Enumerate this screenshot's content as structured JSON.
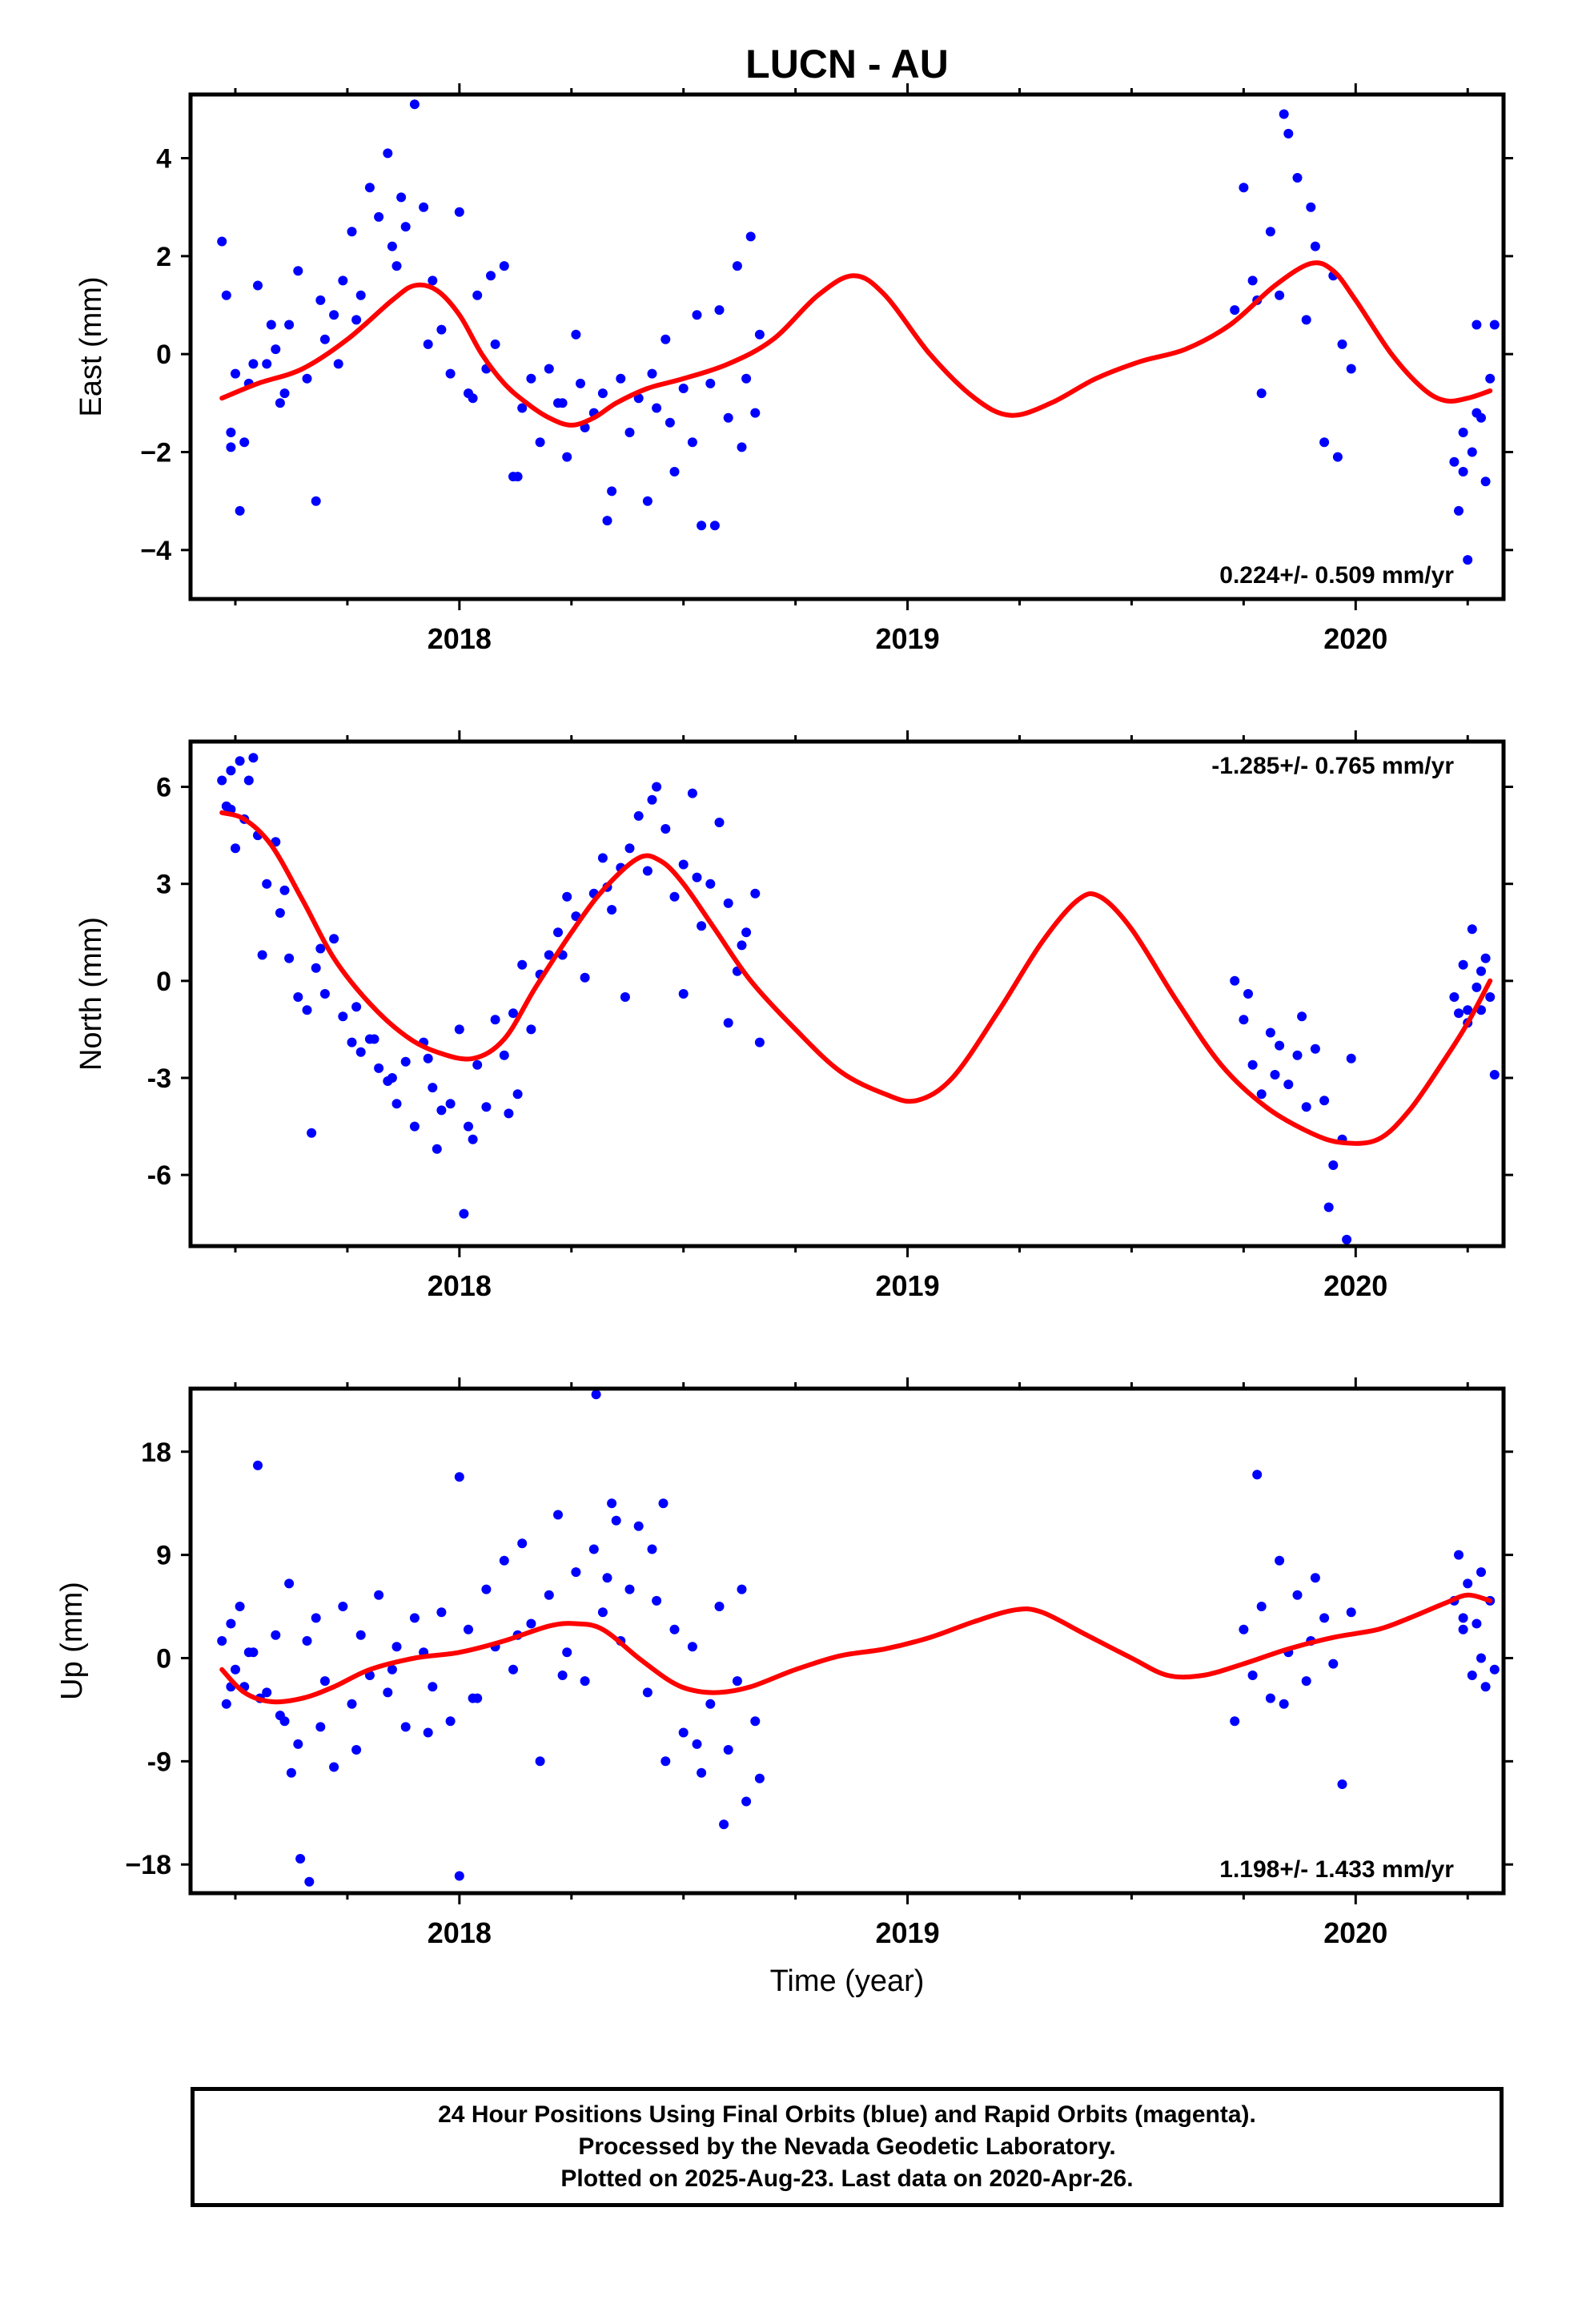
{
  "title": "LUCN - AU",
  "xlabel": "Time (year)",
  "footer": {
    "line1": "24 Hour Positions Using Final Orbits (blue) and Rapid Orbits (magenta).",
    "line2": "Processed by the Nevada Geodetic Laboratory.",
    "line3": "Plotted on 2025-Aug-23. Last data on 2020-Apr-26."
  },
  "colors": {
    "points": "#0000ff",
    "fit": "#ff0000",
    "frame": "#000000"
  },
  "chart_data": [
    {
      "type": "scatter",
      "ylabel": "East (mm)",
      "rate_text": "0.224+/- 0.509 mm/yr",
      "rate_position": "bottom-right",
      "xlim": [
        2017.4,
        2020.33
      ],
      "ylim": [
        -5.0,
        5.3
      ],
      "xticks": [
        2018,
        2019,
        2020
      ],
      "yticks": [
        4,
        2,
        0,
        -2,
        -4
      ],
      "ytick_labels": [
        "4",
        "2",
        "0",
        "−2",
        "−4"
      ],
      "fit": {
        "x": [
          2017.47,
          2017.55,
          2017.65,
          2017.75,
          2017.85,
          2017.9,
          2017.95,
          2018.0,
          2018.05,
          2018.1,
          2018.15,
          2018.2,
          2018.25,
          2018.3,
          2018.35,
          2018.42,
          2018.5,
          2018.6,
          2018.7,
          2018.8,
          2018.88,
          2018.95,
          2019.05,
          2019.15,
          2019.23,
          2019.32,
          2019.42,
          2019.52,
          2019.62,
          2019.72,
          2019.82,
          2019.9,
          2019.95,
          2020.0,
          2020.08,
          2020.15,
          2020.2,
          2020.25,
          2020.3
        ],
        "y": [
          -0.9,
          -0.6,
          -0.3,
          0.3,
          1.1,
          1.4,
          1.3,
          0.8,
          0.0,
          -0.6,
          -1.0,
          -1.3,
          -1.45,
          -1.3,
          -1.0,
          -0.7,
          -0.5,
          -0.2,
          0.3,
          1.2,
          1.6,
          1.2,
          0.0,
          -0.9,
          -1.25,
          -1.0,
          -0.5,
          -0.15,
          0.1,
          0.6,
          1.4,
          1.85,
          1.7,
          1.1,
          0.0,
          -0.7,
          -0.95,
          -0.9,
          -0.75
        ]
      },
      "points": {
        "x": [
          2017.47,
          2017.48,
          2017.49,
          2017.5,
          2017.51,
          2017.52,
          2017.53,
          2017.55,
          2017.57,
          2017.59,
          2017.6,
          2017.62,
          2017.64,
          2017.66,
          2017.68,
          2017.7,
          2017.72,
          2017.74,
          2017.76,
          2017.78,
          2017.8,
          2017.82,
          2017.84,
          2017.86,
          2017.88,
          2017.9,
          2017.92,
          2017.94,
          2017.96,
          2017.98,
          2018.0,
          2018.02,
          2018.04,
          2018.06,
          2018.08,
          2018.1,
          2018.12,
          2018.14,
          2018.16,
          2018.18,
          2018.2,
          2018.22,
          2018.24,
          2018.26,
          2018.28,
          2018.3,
          2018.32,
          2018.34,
          2018.36,
          2018.38,
          2018.4,
          2018.42,
          2018.44,
          2018.46,
          2018.48,
          2018.5,
          2018.52,
          2018.54,
          2018.56,
          2018.58,
          2018.6,
          2018.62,
          2018.64,
          2018.66,
          2018.67,
          2017.49,
          2017.54,
          2017.61,
          2017.69,
          2017.77,
          2017.85,
          2017.93,
          2018.03,
          2018.13,
          2018.23,
          2018.33,
          2018.43,
          2018.53,
          2018.63,
          2017.58,
          2017.73,
          2017.87,
          2018.07,
          2018.27,
          2018.47,
          2018.57,
          2018.65,
          2019.73,
          2019.75,
          2019.77,
          2019.79,
          2019.81,
          2019.83,
          2019.85,
          2019.87,
          2019.89,
          2019.91,
          2019.93,
          2019.95,
          2019.97,
          2019.99,
          2019.78,
          2019.84,
          2019.9,
          2019.96,
          2020.22,
          2020.23,
          2020.24,
          2020.25,
          2020.26,
          2020.27,
          2020.28,
          2020.29,
          2020.3,
          2020.31,
          2020.24,
          2020.27
        ],
        "y": [
          2.3,
          1.2,
          -1.6,
          -0.4,
          -3.2,
          -1.8,
          -0.6,
          1.4,
          -0.2,
          0.1,
          -1.0,
          0.6,
          1.7,
          -0.5,
          -3.0,
          0.3,
          0.8,
          1.5,
          2.5,
          1.2,
          3.4,
          2.8,
          4.1,
          1.8,
          2.6,
          5.1,
          3.0,
          1.5,
          0.5,
          -0.4,
          2.9,
          -0.8,
          1.2,
          -0.3,
          0.2,
          1.8,
          -2.5,
          -1.1,
          -0.5,
          -1.8,
          -0.3,
          -1.0,
          -2.1,
          0.4,
          -1.5,
          -1.2,
          -0.8,
          -2.8,
          -0.5,
          -1.6,
          -0.9,
          -3.0,
          -1.1,
          0.3,
          -2.4,
          -0.7,
          -1.8,
          -3.5,
          -0.6,
          0.9,
          -1.3,
          1.8,
          -0.5,
          -1.2,
          0.4,
          -1.9,
          -0.2,
          -0.8,
          1.1,
          0.7,
          2.2,
          0.2,
          -0.9,
          -2.5,
          -1.0,
          -3.4,
          -0.4,
          0.8,
          -1.9,
          0.6,
          -0.2,
          3.2,
          1.6,
          -0.6,
          -1.4,
          -3.5,
          2.4,
          0.9,
          3.4,
          1.5,
          -0.8,
          2.5,
          1.2,
          4.5,
          3.6,
          0.7,
          2.2,
          -1.8,
          1.6,
          0.2,
          -0.3,
          1.1,
          4.9,
          3.0,
          -2.1,
          -2.2,
          -3.2,
          -1.6,
          -4.2,
          -2.0,
          0.6,
          -1.3,
          -2.6,
          -0.5,
          0.6,
          -2.4,
          -1.2
        ]
      }
    },
    {
      "type": "scatter",
      "ylabel": "North (mm)",
      "rate_text": "-1.285+/- 0.765 mm/yr",
      "rate_position": "top-right",
      "xlim": [
        2017.4,
        2020.33
      ],
      "ylim": [
        -8.2,
        7.4
      ],
      "xticks": [
        2018,
        2019,
        2020
      ],
      "yticks": [
        6,
        3,
        0,
        -3,
        -6
      ],
      "ytick_labels": [
        "6",
        "3",
        "0",
        "-3",
        "-6"
      ],
      "fit": {
        "x": [
          2017.47,
          2017.52,
          2017.58,
          2017.65,
          2017.72,
          2017.8,
          2017.88,
          2017.95,
          2018.03,
          2018.1,
          2018.17,
          2018.25,
          2018.32,
          2018.4,
          2018.45,
          2018.5,
          2018.57,
          2018.65,
          2018.75,
          2018.85,
          2018.95,
          2019.02,
          2019.1,
          2019.2,
          2019.3,
          2019.38,
          2019.43,
          2019.5,
          2019.6,
          2019.7,
          2019.8,
          2019.9,
          2019.97,
          2020.05,
          2020.12,
          2020.2,
          2020.25,
          2020.3
        ],
        "y": [
          5.2,
          5.0,
          4.2,
          2.5,
          0.7,
          -0.7,
          -1.7,
          -2.2,
          -2.4,
          -1.8,
          -0.2,
          1.5,
          2.8,
          3.8,
          3.7,
          3.0,
          1.6,
          0.0,
          -1.5,
          -2.8,
          -3.5,
          -3.7,
          -3.0,
          -1.0,
          1.2,
          2.5,
          2.6,
          1.6,
          -0.6,
          -2.6,
          -3.9,
          -4.7,
          -5.0,
          -4.9,
          -4.0,
          -2.4,
          -1.3,
          0.0
        ]
      },
      "points": {
        "x": [
          2017.47,
          2017.48,
          2017.49,
          2017.5,
          2017.51,
          2017.52,
          2017.53,
          2017.55,
          2017.57,
          2017.59,
          2017.6,
          2017.62,
          2017.64,
          2017.66,
          2017.68,
          2017.7,
          2017.72,
          2017.74,
          2017.76,
          2017.78,
          2017.8,
          2017.82,
          2017.84,
          2017.86,
          2017.88,
          2017.9,
          2017.92,
          2017.94,
          2017.96,
          2017.98,
          2018.0,
          2018.02,
          2018.04,
          2018.06,
          2018.08,
          2018.1,
          2018.12,
          2018.14,
          2018.16,
          2018.18,
          2018.2,
          2018.22,
          2018.24,
          2018.26,
          2018.28,
          2018.3,
          2018.32,
          2018.34,
          2018.36,
          2018.38,
          2018.4,
          2018.42,
          2018.44,
          2018.46,
          2018.48,
          2018.5,
          2018.52,
          2018.54,
          2018.56,
          2018.58,
          2018.6,
          2018.62,
          2018.64,
          2018.66,
          2018.67,
          2017.49,
          2017.54,
          2017.61,
          2017.69,
          2017.77,
          2017.85,
          2017.93,
          2018.03,
          2018.13,
          2018.23,
          2018.33,
          2018.43,
          2018.53,
          2018.63,
          2017.56,
          2017.67,
          2017.81,
          2017.95,
          2018.01,
          2018.11,
          2018.37,
          2018.5,
          2018.6,
          2019.73,
          2019.75,
          2019.77,
          2019.79,
          2019.81,
          2019.83,
          2019.85,
          2019.87,
          2019.89,
          2019.91,
          2019.93,
          2019.95,
          2019.97,
          2019.99,
          2019.76,
          2019.82,
          2019.88,
          2019.94,
          2019.98,
          2020.22,
          2020.23,
          2020.24,
          2020.25,
          2020.26,
          2020.27,
          2020.28,
          2020.29,
          2020.3,
          2020.31,
          2020.25,
          2020.28
        ],
        "y": [
          6.2,
          5.4,
          6.5,
          4.1,
          6.8,
          5.0,
          6.2,
          4.5,
          3.0,
          4.3,
          2.1,
          0.7,
          -0.5,
          -0.9,
          0.4,
          -0.4,
          1.3,
          -1.1,
          -1.9,
          -2.2,
          -1.8,
          -2.7,
          -3.1,
          -3.8,
          -2.5,
          -4.5,
          -1.9,
          -3.3,
          -4.0,
          -3.8,
          -1.5,
          -4.5,
          -2.6,
          -3.9,
          -1.2,
          -2.3,
          -1.0,
          0.5,
          -1.5,
          0.2,
          0.8,
          1.5,
          2.6,
          2.0,
          0.1,
          2.7,
          3.8,
          2.2,
          3.5,
          4.1,
          5.1,
          3.4,
          6.0,
          4.7,
          2.6,
          3.6,
          5.8,
          1.7,
          3.0,
          4.9,
          2.4,
          0.3,
          1.5,
          2.7,
          -1.9,
          5.3,
          6.9,
          2.8,
          1.0,
          -0.8,
          -3.0,
          -2.4,
          -4.9,
          -3.5,
          0.8,
          2.9,
          5.6,
          3.2,
          1.1,
          0.8,
          -4.7,
          -1.8,
          -5.2,
          -7.2,
          -4.1,
          -0.5,
          -0.4,
          -1.3,
          0.0,
          -1.2,
          -2.6,
          -3.5,
          -1.6,
          -2.0,
          -3.2,
          -2.3,
          -3.9,
          -2.1,
          -3.7,
          -5.7,
          -4.9,
          -2.4,
          -0.4,
          -2.9,
          -1.1,
          -7.0,
          -8.0,
          -0.5,
          -1.0,
          0.5,
          -1.3,
          1.6,
          -0.2,
          -0.9,
          0.7,
          -0.5,
          -2.9,
          -0.9,
          0.3
        ]
      }
    },
    {
      "type": "scatter",
      "ylabel": "Up (mm)",
      "rate_text": "1.198+/- 1.433 mm/yr",
      "rate_position": "bottom-right",
      "xlim": [
        2017.4,
        2020.33
      ],
      "ylim": [
        -20.5,
        23.5
      ],
      "xticks": [
        2018,
        2019,
        2020
      ],
      "yticks": [
        18,
        9,
        0,
        -9,
        -18
      ],
      "ytick_labels": [
        "18",
        "9",
        "0",
        "-9",
        "−18"
      ],
      "fit": {
        "x": [
          2017.47,
          2017.52,
          2017.58,
          2017.65,
          2017.72,
          2017.8,
          2017.9,
          2018.0,
          2018.1,
          2018.2,
          2018.26,
          2018.32,
          2018.4,
          2018.47,
          2018.52,
          2018.58,
          2018.65,
          2018.75,
          2018.85,
          2018.95,
          2019.05,
          2019.15,
          2019.24,
          2019.3,
          2019.4,
          2019.5,
          2019.58,
          2019.66,
          2019.75,
          2019.85,
          2019.95,
          2020.05,
          2020.12,
          2020.2,
          2020.25,
          2020.3
        ],
        "y": [
          -1.0,
          -3.0,
          -3.8,
          -3.5,
          -2.5,
          -1.0,
          0.0,
          0.5,
          1.5,
          2.8,
          3.0,
          2.5,
          0.0,
          -2.0,
          -2.8,
          -3.0,
          -2.5,
          -1.0,
          0.2,
          0.8,
          1.8,
          3.2,
          4.2,
          4.0,
          2.0,
          0.0,
          -1.5,
          -1.5,
          -0.5,
          0.8,
          1.8,
          2.5,
          3.5,
          4.8,
          5.5,
          5.0
        ]
      },
      "points": {
        "x": [
          2017.47,
          2017.48,
          2017.49,
          2017.5,
          2017.51,
          2017.52,
          2017.53,
          2017.55,
          2017.57,
          2017.59,
          2017.6,
          2017.62,
          2017.64,
          2017.66,
          2017.68,
          2017.7,
          2017.72,
          2017.74,
          2017.76,
          2017.78,
          2017.8,
          2017.82,
          2017.84,
          2017.86,
          2017.88,
          2017.9,
          2017.92,
          2017.94,
          2017.96,
          2017.98,
          2018.0,
          2018.02,
          2018.04,
          2018.06,
          2018.08,
          2018.1,
          2018.12,
          2018.14,
          2018.16,
          2018.18,
          2018.2,
          2018.22,
          2018.24,
          2018.26,
          2018.28,
          2018.3,
          2018.32,
          2018.34,
          2018.36,
          2018.38,
          2018.4,
          2018.42,
          2018.44,
          2018.46,
          2018.48,
          2018.5,
          2018.52,
          2018.54,
          2018.56,
          2018.58,
          2018.6,
          2018.62,
          2018.64,
          2018.66,
          2018.67,
          2017.49,
          2017.54,
          2017.61,
          2017.69,
          2017.77,
          2017.85,
          2017.93,
          2018.03,
          2018.13,
          2018.23,
          2018.33,
          2018.43,
          2018.53,
          2018.63,
          2017.555,
          2017.625,
          2017.645,
          2017.665,
          2018.0,
          2018.305,
          2018.35,
          2018.455,
          2018.59,
          2019.73,
          2019.75,
          2019.77,
          2019.79,
          2019.81,
          2019.83,
          2019.85,
          2019.87,
          2019.89,
          2019.91,
          2019.93,
          2019.95,
          2019.97,
          2019.99,
          2019.78,
          2019.84,
          2019.9,
          2020.22,
          2020.23,
          2020.24,
          2020.25,
          2020.26,
          2020.27,
          2020.28,
          2020.29,
          2020.3,
          2020.31,
          2020.24,
          2020.28
        ],
        "y": [
          1.5,
          -4.0,
          3.0,
          -1.0,
          4.5,
          -2.5,
          0.5,
          16.8,
          -3.0,
          2.0,
          -5.0,
          6.5,
          -7.5,
          1.5,
          3.5,
          -2.0,
          -9.5,
          4.5,
          -4.0,
          2.0,
          -1.5,
          5.5,
          -3.0,
          1.0,
          -6.0,
          3.5,
          0.5,
          -2.5,
          4.0,
          -5.5,
          15.8,
          2.5,
          -3.5,
          6.0,
          1.0,
          8.5,
          -1.0,
          10.0,
          3.0,
          -9.0,
          5.5,
          12.5,
          0.5,
          7.5,
          -2.0,
          9.5,
          4.0,
          13.5,
          1.5,
          6.0,
          11.5,
          -3.0,
          5.0,
          -9.0,
          2.5,
          -6.5,
          1.0,
          -10.0,
          -4.0,
          4.5,
          -8.0,
          -2.0,
          -12.5,
          -5.5,
          -10.5,
          -2.5,
          0.5,
          -5.5,
          -6.0,
          -8.0,
          -1.0,
          -6.5,
          -3.5,
          2.0,
          -1.5,
          7.0,
          9.5,
          -7.5,
          6.0,
          -3.5,
          -10.0,
          -17.5,
          -19.5,
          -19.0,
          23.0,
          12.0,
          13.5,
          -14.5,
          -5.5,
          2.5,
          -1.5,
          4.5,
          -3.5,
          8.5,
          0.5,
          5.5,
          -2.0,
          7.0,
          3.5,
          -0.5,
          -11.0,
          4.0,
          16.0,
          -4.0,
          1.5,
          5.0,
          9.0,
          2.5,
          6.5,
          -1.5,
          3.0,
          7.5,
          -2.5,
          5.0,
          -1.0,
          3.5,
          0.0
        ]
      }
    }
  ]
}
